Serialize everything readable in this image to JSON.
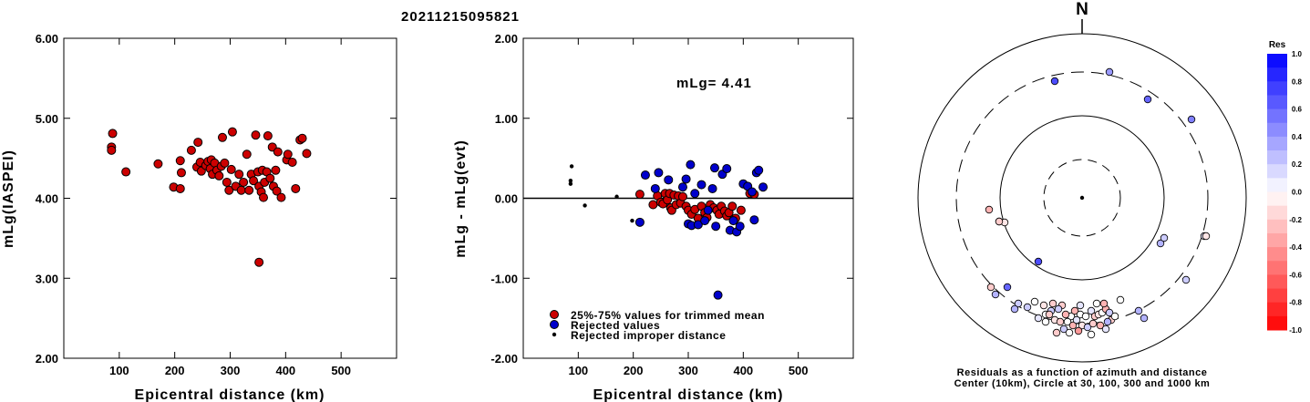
{
  "title": "20211215095821",
  "colors": {
    "red": "#cc0000",
    "blue": "#0000cc",
    "black": "#000000"
  },
  "chart_data": [
    {
      "type": "scatter",
      "id": "left",
      "xlabel": "Epicentral distance (km)",
      "ylabel": "mLg(IASPEI)",
      "xlim": [
        0,
        600
      ],
      "ylim": [
        2.0,
        6.0
      ],
      "xticks": [
        100,
        200,
        300,
        400,
        500
      ],
      "yticks": [
        "2.00",
        "3.00",
        "4.00",
        "5.00",
        "6.00"
      ],
      "series": [
        {
          "color": "red",
          "points": [
            [
              88,
              4.81
            ],
            [
              86,
              4.64
            ],
            [
              86,
              4.6
            ],
            [
              112,
              4.33
            ],
            [
              170,
              4.43
            ],
            [
              198,
              4.14
            ],
            [
              210,
              4.12
            ],
            [
              210,
              4.47
            ],
            [
              212,
              4.32
            ],
            [
              230,
              4.6
            ],
            [
              240,
              4.39
            ],
            [
              242,
              4.7
            ],
            [
              246,
              4.45
            ],
            [
              248,
              4.34
            ],
            [
              256,
              4.41
            ],
            [
              260,
              4.46
            ],
            [
              264,
              4.37
            ],
            [
              266,
              4.48
            ],
            [
              268,
              4.3
            ],
            [
              272,
              4.44
            ],
            [
              276,
              4.35
            ],
            [
              280,
              4.28
            ],
            [
              284,
              4.4
            ],
            [
              286,
              4.76
            ],
            [
              290,
              4.44
            ],
            [
              294,
              4.2
            ],
            [
              298,
              4.1
            ],
            [
              302,
              4.36
            ],
            [
              304,
              4.83
            ],
            [
              310,
              4.15
            ],
            [
              316,
              4.3
            ],
            [
              320,
              4.1
            ],
            [
              324,
              4.2
            ],
            [
              330,
              4.55
            ],
            [
              334,
              4.1
            ],
            [
              338,
              4.3
            ],
            [
              342,
              4.22
            ],
            [
              346,
              4.79
            ],
            [
              350,
              4.33
            ],
            [
              352,
              4.15
            ],
            [
              356,
              4.08
            ],
            [
              358,
              4.35
            ],
            [
              362,
              4.2
            ],
            [
              366,
              4.33
            ],
            [
              368,
              4.78
            ],
            [
              372,
              4.25
            ],
            [
              376,
              4.64
            ],
            [
              378,
              4.15
            ],
            [
              382,
              4.35
            ],
            [
              384,
              4.09
            ],
            [
              386,
              4.58
            ],
            [
              392,
              4.01
            ],
            [
              402,
              4.48
            ],
            [
              404,
              4.55
            ],
            [
              412,
              4.45
            ],
            [
              418,
              4.12
            ],
            [
              426,
              4.73
            ],
            [
              430,
              4.75
            ],
            [
              438,
              4.56
            ],
            [
              360,
              4.01
            ],
            [
              352,
              3.2
            ]
          ]
        }
      ]
    },
    {
      "type": "scatter",
      "id": "middle",
      "xlabel": "Epicentral distance (km)",
      "ylabel": "mLg - mLg(evt)",
      "xlim": [
        0,
        600
      ],
      "ylim": [
        -2.0,
        2.0
      ],
      "xticks": [
        100,
        200,
        300,
        400,
        500
      ],
      "yticks": [
        "-2.00",
        "-1.00",
        "0.00",
        "1.00",
        "2.00"
      ],
      "annotation": "mLg= 4.41",
      "zero_line": true,
      "series": [
        {
          "name": "25%-75% values for trimmed mean",
          "color": "red",
          "points": [
            [
              212,
              0.05
            ],
            [
              236,
              -0.08
            ],
            [
              244,
              0.03
            ],
            [
              250,
              -0.05
            ],
            [
              254,
              -0.07
            ],
            [
              258,
              0.06
            ],
            [
              262,
              -0.02
            ],
            [
              266,
              0.06
            ],
            [
              268,
              -0.12
            ],
            [
              270,
              -0.15
            ],
            [
              274,
              0.04
            ],
            [
              278,
              -0.08
            ],
            [
              282,
              0.03
            ],
            [
              286,
              -0.06
            ],
            [
              290,
              0.02
            ],
            [
              296,
              -0.1
            ],
            [
              300,
              -0.15
            ],
            [
              306,
              -0.2
            ],
            [
              312,
              -0.14
            ],
            [
              318,
              -0.25
            ],
            [
              324,
              -0.1
            ],
            [
              330,
              -0.18
            ],
            [
              334,
              -0.24
            ],
            [
              340,
              -0.08
            ],
            [
              346,
              -0.12
            ],
            [
              352,
              -0.15
            ],
            [
              356,
              -0.2
            ],
            [
              360,
              -0.1
            ],
            [
              366,
              -0.16
            ],
            [
              370,
              -0.22
            ],
            [
              374,
              -0.18
            ],
            [
              380,
              -0.1
            ],
            [
              386,
              -0.25
            ],
            [
              396,
              -0.15
            ],
            [
              412,
              0.06
            ],
            [
              420,
              0.05
            ]
          ]
        },
        {
          "name": "Rejected values",
          "color": "blue",
          "points": [
            [
              212,
              -0.3
            ],
            [
              222,
              0.29
            ],
            [
              240,
              0.12
            ],
            [
              246,
              0.32
            ],
            [
              264,
              0.23
            ],
            [
              290,
              0.14
            ],
            [
              300,
              -0.32
            ],
            [
              304,
              0.42
            ],
            [
              306,
              -0.34
            ],
            [
              318,
              -0.33
            ],
            [
              324,
              0.17
            ],
            [
              330,
              -0.28
            ],
            [
              336,
              -0.15
            ],
            [
              344,
              0.12
            ],
            [
              348,
              0.38
            ],
            [
              350,
              -0.35
            ],
            [
              354,
              -1.21
            ],
            [
              362,
              0.3
            ],
            [
              370,
              0.37
            ],
            [
              376,
              -0.4
            ],
            [
              382,
              -0.28
            ],
            [
              388,
              -0.42
            ],
            [
              394,
              -0.35
            ],
            [
              400,
              0.18
            ],
            [
              408,
              0.15
            ],
            [
              416,
              0.08
            ],
            [
              424,
              0.32
            ],
            [
              428,
              0.35
            ],
            [
              436,
              0.14
            ],
            [
              420,
              -0.27
            ],
            [
              312,
              0.06
            ],
            [
              296,
              0.24
            ]
          ]
        },
        {
          "name": "Rejected improper distance",
          "color": "black",
          "points": [
            [
              86,
              0.22
            ],
            [
              88,
              0.4
            ],
            [
              86,
              0.18
            ],
            [
              112,
              -0.09
            ],
            [
              170,
              0.02
            ],
            [
              198,
              -0.28
            ]
          ]
        }
      ]
    },
    {
      "type": "scatter",
      "id": "polar",
      "caption_line1": "Residuals as a function of azimuth and distance",
      "caption_line2": "Center (10km), Circle at 30, 100, 300 and 1000 km",
      "north_label": "N",
      "colorbar_title": "Res",
      "colorbar_ticks": [
        "1.0",
        "0.8",
        "0.6",
        "0.4",
        "0.2",
        "0.0",
        "-0.2",
        "-0.4",
        "-0.6",
        "-0.8",
        "-1.0"
      ],
      "points_dx_dy_res": [
        [
          -30,
          128,
          0.7
        ],
        [
          30,
          138,
          0.4
        ],
        [
          72,
          108,
          0.6
        ],
        [
          120,
          86,
          0.5
        ],
        [
          86,
          -50,
          0.3
        ],
        [
          90,
          -44,
          0.2
        ],
        [
          134,
          -42,
          0.1
        ],
        [
          136,
          -42,
          -0.1
        ],
        [
          -102,
          -13,
          -0.3
        ],
        [
          -91,
          -26,
          -0.3
        ],
        [
          -48,
          -70,
          0.7
        ],
        [
          -85,
          -27,
          -0.1
        ],
        [
          -91,
          -26,
          -0.2
        ],
        [
          -82,
          -98,
          0.6
        ],
        [
          -100,
          -98,
          -0.2
        ],
        [
          -95,
          -106,
          0.3
        ],
        [
          -70,
          -116,
          0.2
        ],
        [
          -52,
          -114,
          0.0
        ],
        [
          -74,
          -122,
          0.3
        ],
        [
          -60,
          -120,
          0.2
        ],
        [
          -40,
          -128,
          0.0
        ],
        [
          -42,
          -118,
          -0.1
        ],
        [
          -34,
          -124,
          0.2
        ],
        [
          -22,
          -118,
          -0.2
        ],
        [
          -12,
          -130,
          0.0
        ],
        [
          -8,
          -124,
          -0.3
        ],
        [
          -2,
          -128,
          0.0
        ],
        [
          4,
          -130,
          0.0
        ],
        [
          10,
          -124,
          0.1
        ],
        [
          14,
          -130,
          -0.2
        ],
        [
          18,
          -128,
          -0.1
        ],
        [
          22,
          -126,
          0.0
        ],
        [
          26,
          -122,
          -0.3
        ],
        [
          30,
          -126,
          0.2
        ],
        [
          32,
          -134,
          -0.2
        ],
        [
          28,
          -136,
          0.3
        ],
        [
          -30,
          -134,
          -0.1
        ],
        [
          -24,
          -136,
          -0.2
        ],
        [
          -16,
          -136,
          0.0
        ],
        [
          -10,
          -140,
          -0.3
        ],
        [
          0,
          -140,
          -0.1
        ],
        [
          6,
          -142,
          0.2
        ],
        [
          12,
          -138,
          -0.2
        ],
        [
          20,
          -140,
          -0.3
        ],
        [
          26,
          -144,
          0.1
        ],
        [
          -20,
          -144,
          0.2
        ],
        [
          -4,
          -146,
          -0.4
        ],
        [
          -40,
          -136,
          0.0
        ],
        [
          -48,
          -132,
          0.1
        ],
        [
          -36,
          -128,
          -0.2
        ],
        [
          42,
          -112,
          0.0
        ],
        [
          62,
          -124,
          0.3
        ],
        [
          68,
          -132,
          0.3
        ],
        [
          -32,
          -116,
          -0.2
        ],
        [
          -26,
          -122,
          0.2
        ],
        [
          -18,
          -128,
          -0.3
        ],
        [
          24,
          -116,
          -0.3
        ],
        [
          16,
          -116,
          0.0
        ],
        [
          -6,
          -134,
          0.1
        ],
        [
          -14,
          -148,
          0.0
        ],
        [
          10,
          -150,
          0.0
        ],
        [
          -28,
          -148,
          -0.2
        ],
        [
          114,
          -90,
          0.2
        ],
        [
          -2,
          -118,
          0.1
        ],
        [
          36,
          -130,
          0.0
        ]
      ]
    }
  ]
}
